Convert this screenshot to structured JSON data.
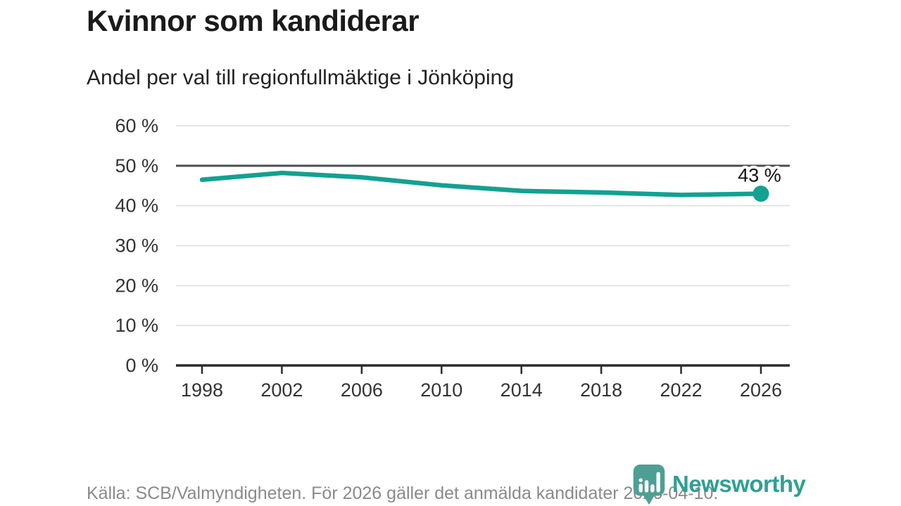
{
  "header": {
    "title": "Kvinnor som kandiderar",
    "subtitle": "Andel per val till regionfullmäktige i Jönköping"
  },
  "chart_data": {
    "type": "line",
    "title": "Kvinnor som kandiderar",
    "subtitle": "Andel per val till regionfullmäktige i Jönköping",
    "x": [
      1998,
      2002,
      2006,
      2010,
      2014,
      2018,
      2022,
      2026
    ],
    "values": [
      46.5,
      48.2,
      47.1,
      45.1,
      43.7,
      43.3,
      42.7,
      43
    ],
    "unit": "%",
    "xlabel": "",
    "ylabel": "",
    "ylim": [
      0,
      60
    ],
    "yticks": [
      0,
      10,
      20,
      30,
      40,
      50,
      60
    ],
    "ytick_suffix": " %",
    "xticks": [
      "1998",
      "2002",
      "2006",
      "2010",
      "2014",
      "2018",
      "2022",
      "2026"
    ],
    "reference_line": 50,
    "grid": true,
    "legend_position": "none",
    "end_label": "43 %",
    "line_color": "#12a192",
    "grid_color": "#e3e3e3",
    "reference_line_color": "#4d4d4d",
    "axis_color": "#2b2b2b",
    "tick_label_color": "#333333"
  },
  "footer": {
    "source": "Källa: SCB/Valmyndigheten. För 2026 gäller det anmälda kandidater 2026-04-10.",
    "brand": "Newsworthy",
    "brand_color": "#2f9f94",
    "brand_icon": "bar-chart-pin-icon"
  }
}
